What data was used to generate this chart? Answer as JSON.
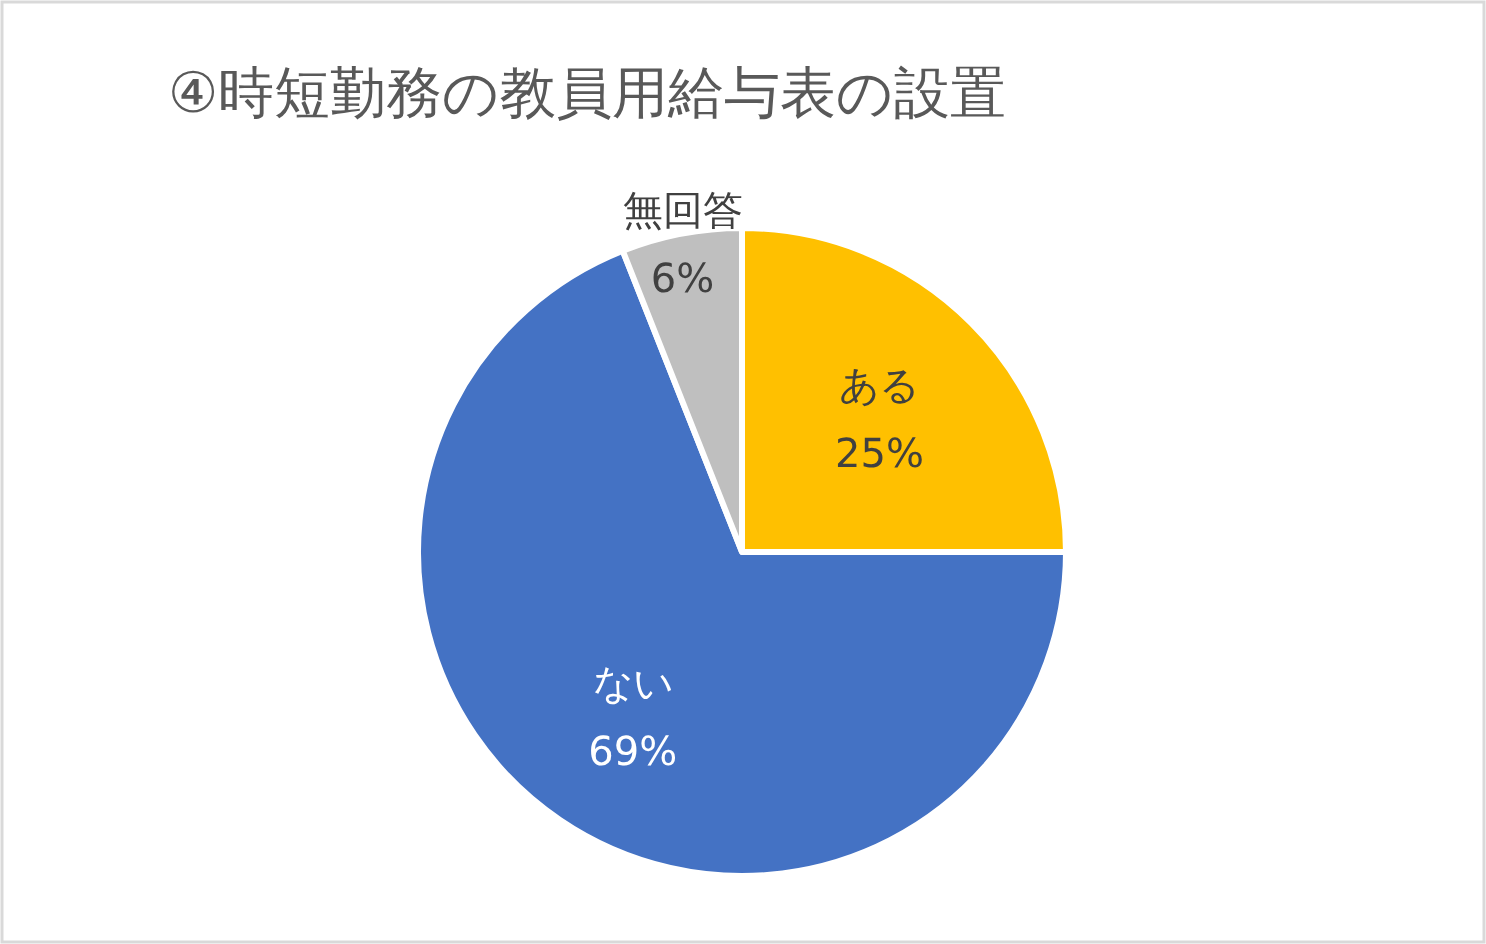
{
  "chart_data": {
    "type": "pie",
    "title": "④時短勤務の教員用給与表の設置",
    "categories": [
      "ある",
      "ない",
      "無回答"
    ],
    "values": [
      25,
      69,
      6
    ],
    "colors": [
      "#ffc000",
      "#4472c4",
      "#bfbfbf"
    ],
    "value_labels": [
      "25%",
      "69%",
      "6%"
    ]
  }
}
